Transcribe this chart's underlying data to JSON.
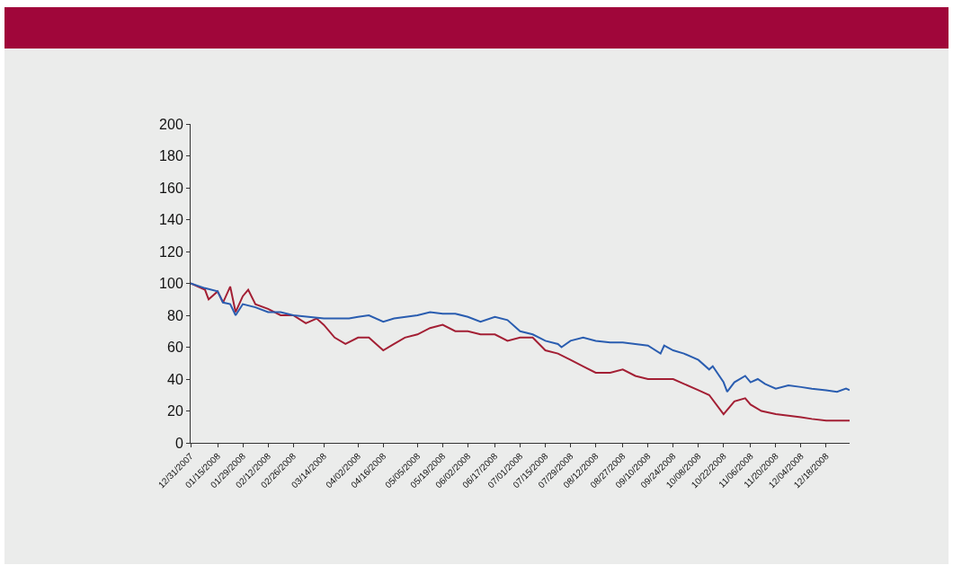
{
  "chart_data": {
    "type": "line",
    "xlim": [
      "2007-12-31",
      "2008-12-31"
    ],
    "xticks": [
      {
        "value": "2007-12-31",
        "label": "12/31/2007"
      },
      {
        "value": "2008-01-15",
        "label": "01/15/2008"
      },
      {
        "value": "2008-01-29",
        "label": "01/29/2008"
      },
      {
        "value": "2008-02-12",
        "label": "02/12/2008"
      },
      {
        "value": "2008-02-26",
        "label": "02/26/2008"
      },
      {
        "value": "2008-03-14",
        "label": "03/14/2008"
      },
      {
        "value": "2008-04-02",
        "label": "04/02/2008"
      },
      {
        "value": "2008-04-16",
        "label": "04/16/2008"
      },
      {
        "value": "2008-05-05",
        "label": "05/05/2008"
      },
      {
        "value": "2008-05-19",
        "label": "05/19/2008"
      },
      {
        "value": "2008-06-02",
        "label": "06/02/2008"
      },
      {
        "value": "2008-06-17",
        "label": "06/17/2008"
      },
      {
        "value": "2008-07-01",
        "label": "07/01/2008"
      },
      {
        "value": "2008-07-15",
        "label": "07/15/2008"
      },
      {
        "value": "2008-07-29",
        "label": "07/29/2008"
      },
      {
        "value": "2008-08-12",
        "label": "08/12/2008"
      },
      {
        "value": "2008-08-27",
        "label": "08/27/2008"
      },
      {
        "value": "2008-09-10",
        "label": "09/10/2008"
      },
      {
        "value": "2008-09-24",
        "label": "09/24/2008"
      },
      {
        "value": "2008-10-08",
        "label": "10/08/2008"
      },
      {
        "value": "2008-10-22",
        "label": "10/22/2008"
      },
      {
        "value": "2008-11-06",
        "label": "11/06/2008"
      },
      {
        "value": "2008-11-20",
        "label": "11/20/2008"
      },
      {
        "value": "2008-12-04",
        "label": "12/04/2008"
      },
      {
        "value": "2008-12-18",
        "label": "12/18/2008"
      }
    ],
    "ylim": [
      0,
      200
    ],
    "yticks": [
      0,
      20,
      40,
      60,
      80,
      100,
      120,
      140,
      160,
      180,
      200
    ],
    "series": [
      {
        "color": "#a31f34",
        "x": [
          "2007-12-31",
          "2008-01-08",
          "2008-01-10",
          "2008-01-15",
          "2008-01-18",
          "2008-01-22",
          "2008-01-25",
          "2008-01-29",
          "2008-02-01",
          "2008-02-05",
          "2008-02-12",
          "2008-02-19",
          "2008-02-26",
          "2008-03-04",
          "2008-03-10",
          "2008-03-14",
          "2008-03-20",
          "2008-03-26",
          "2008-04-02",
          "2008-04-08",
          "2008-04-14",
          "2008-04-16",
          "2008-04-22",
          "2008-04-28",
          "2008-05-05",
          "2008-05-12",
          "2008-05-19",
          "2008-05-26",
          "2008-06-02",
          "2008-06-09",
          "2008-06-17",
          "2008-06-24",
          "2008-07-01",
          "2008-07-08",
          "2008-07-15",
          "2008-07-22",
          "2008-07-29",
          "2008-08-05",
          "2008-08-12",
          "2008-08-20",
          "2008-08-27",
          "2008-09-03",
          "2008-09-10",
          "2008-09-17",
          "2008-09-24",
          "2008-09-30",
          "2008-10-08",
          "2008-10-14",
          "2008-10-22",
          "2008-10-28",
          "2008-11-03",
          "2008-11-06",
          "2008-11-12",
          "2008-11-20",
          "2008-11-27",
          "2008-12-04",
          "2008-12-10",
          "2008-12-18",
          "2008-12-24",
          "2008-12-31"
        ],
        "values": [
          100,
          96,
          90,
          95,
          88,
          98,
          82,
          92,
          96,
          87,
          84,
          80,
          80,
          75,
          78,
          74,
          66,
          62,
          66,
          66,
          60,
          58,
          62,
          66,
          68,
          72,
          74,
          70,
          70,
          68,
          68,
          64,
          66,
          66,
          58,
          56,
          52,
          48,
          44,
          44,
          46,
          42,
          40,
          40,
          40,
          37,
          33,
          30,
          18,
          26,
          28,
          24,
          20,
          18,
          17,
          16,
          15,
          14,
          14,
          14
        ]
      },
      {
        "color": "#2a5db0",
        "x": [
          "2007-12-31",
          "2008-01-08",
          "2008-01-15",
          "2008-01-18",
          "2008-01-22",
          "2008-01-25",
          "2008-01-29",
          "2008-02-05",
          "2008-02-12",
          "2008-02-19",
          "2008-02-26",
          "2008-03-14",
          "2008-03-28",
          "2008-04-02",
          "2008-04-08",
          "2008-04-16",
          "2008-04-22",
          "2008-05-05",
          "2008-05-12",
          "2008-05-19",
          "2008-05-26",
          "2008-06-02",
          "2008-06-09",
          "2008-06-17",
          "2008-06-24",
          "2008-07-01",
          "2008-07-08",
          "2008-07-15",
          "2008-07-22",
          "2008-07-24",
          "2008-07-29",
          "2008-08-05",
          "2008-08-12",
          "2008-08-20",
          "2008-08-27",
          "2008-09-03",
          "2008-09-10",
          "2008-09-17",
          "2008-09-19",
          "2008-09-24",
          "2008-09-30",
          "2008-10-08",
          "2008-10-14",
          "2008-10-16",
          "2008-10-22",
          "2008-10-24",
          "2008-10-28",
          "2008-11-03",
          "2008-11-06",
          "2008-11-10",
          "2008-11-14",
          "2008-11-20",
          "2008-11-27",
          "2008-12-04",
          "2008-12-10",
          "2008-12-18",
          "2008-12-24",
          "2008-12-29",
          "2008-12-31"
        ],
        "values": [
          100,
          97,
          95,
          88,
          87,
          80,
          87,
          85,
          82,
          82,
          80,
          78,
          78,
          79,
          80,
          76,
          78,
          80,
          82,
          81,
          81,
          79,
          76,
          79,
          77,
          70,
          68,
          64,
          62,
          60,
          64,
          66,
          64,
          63,
          63,
          62,
          61,
          56,
          61,
          58,
          56,
          52,
          46,
          48,
          38,
          32,
          38,
          42,
          38,
          40,
          37,
          34,
          36,
          35,
          34,
          33,
          32,
          34,
          33
        ]
      }
    ]
  }
}
